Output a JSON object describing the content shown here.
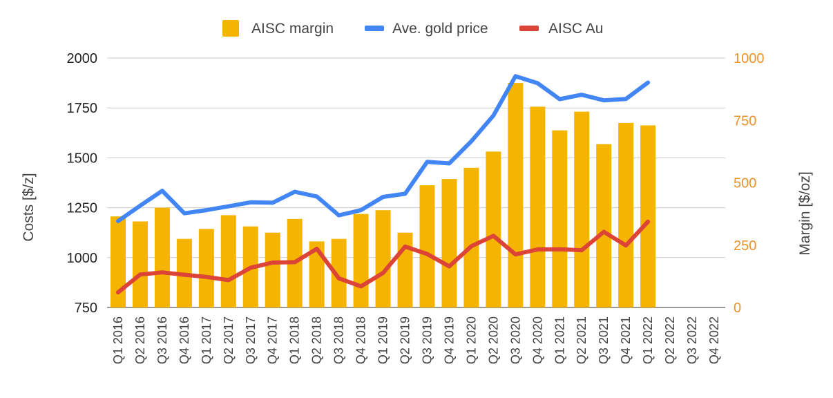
{
  "chart_data": {
    "type": "bar",
    "categories": [
      "Q1 2016",
      "Q2 2016",
      "Q3 2016",
      "Q4 2016",
      "Q1 2017",
      "Q2 2017",
      "Q3 2017",
      "Q4 2017",
      "Q1 2018",
      "Q2 2018",
      "Q3 2018",
      "Q4 2018",
      "Q1 2019",
      "Q2 2019",
      "Q3 2019",
      "Q4 2019",
      "Q1 2020",
      "Q2 2020",
      "Q3 2020",
      "Q4 2020",
      "Q1 2021",
      "Q2 2021",
      "Q3 2021",
      "Q4 2021",
      "Q1 2022",
      "Q2 2022",
      "Q3 2022",
      "Q4 2022"
    ],
    "series": [
      {
        "name": "AISC margin",
        "kind": "bar",
        "axis": "right",
        "color": "#f4b400",
        "values": [
          365,
          345,
          400,
          275,
          315,
          370,
          325,
          300,
          355,
          265,
          275,
          375,
          390,
          300,
          490,
          515,
          560,
          625,
          900,
          805,
          710,
          785,
          655,
          740,
          730,
          null,
          null,
          null
        ]
      },
      {
        "name": "Ave. gold price",
        "kind": "line",
        "axis": "left",
        "color": "#4285f4",
        "values": [
          1183,
          1260,
          1335,
          1222,
          1238,
          1257,
          1277,
          1275,
          1330,
          1306,
          1212,
          1238,
          1304,
          1320,
          1480,
          1472,
          1583,
          1712,
          1909,
          1874,
          1794,
          1816,
          1788,
          1795,
          1877,
          null,
          null,
          null
        ]
      },
      {
        "name": "AISC Au",
        "kind": "line",
        "axis": "left",
        "color": "#db4437",
        "values": [
          826,
          915,
          926,
          914,
          903,
          887,
          949,
          975,
          977,
          1044,
          896,
          856,
          923,
          1055,
          1018,
          956,
          1057,
          1109,
          1016,
          1041,
          1042,
          1037,
          1129,
          1061,
          1180,
          null,
          null,
          null
        ]
      }
    ],
    "ylabel": "Costs [$/z]",
    "ylabel_right": "Margin [$/oz]",
    "ylim": [
      750,
      2000
    ],
    "ylim_right": [
      0,
      1000
    ],
    "yticks": [
      "750",
      "1000",
      "1250",
      "1500",
      "1750",
      "2000"
    ],
    "yticks_right": [
      "0",
      "250",
      "500",
      "750",
      "1000"
    ],
    "grid": true,
    "legend_position": "top"
  }
}
